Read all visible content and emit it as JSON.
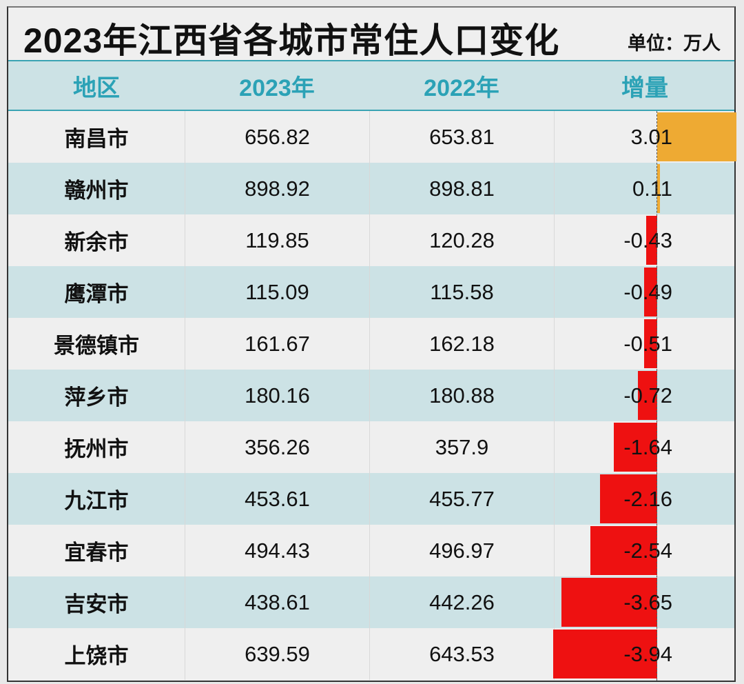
{
  "title": "2023年江西省各城市常住人口变化",
  "unit": "单位：万人",
  "columns": [
    "地区",
    "2023年",
    "2022年",
    "增量"
  ],
  "colors": {
    "positive": "#eeaa33",
    "negative": "#ee1111",
    "header_text": "#2ba2b6",
    "alt_row": "#cce2e5"
  },
  "rows": [
    {
      "region": "南昌市",
      "y2023": "656.82",
      "y2022": "653.81",
      "change": "3.01"
    },
    {
      "region": "赣州市",
      "y2023": "898.92",
      "y2022": "898.81",
      "change": "0.11"
    },
    {
      "region": "新余市",
      "y2023": "119.85",
      "y2022": "120.28",
      "change": "-0.43"
    },
    {
      "region": "鹰潭市",
      "y2023": "115.09",
      "y2022": "115.58",
      "change": "-0.49"
    },
    {
      "region": "景德镇市",
      "y2023": "161.67",
      "y2022": "162.18",
      "change": "-0.51"
    },
    {
      "region": "萍乡市",
      "y2023": "180.16",
      "y2022": "180.88",
      "change": "-0.72"
    },
    {
      "region": "抚州市",
      "y2023": "356.26",
      "y2022": "357.9",
      "change": "-1.64"
    },
    {
      "region": "九江市",
      "y2023": "453.61",
      "y2022": "455.77",
      "change": "-2.16"
    },
    {
      "region": "宜春市",
      "y2023": "494.43",
      "y2022": "496.97",
      "change": "-2.54"
    },
    {
      "region": "吉安市",
      "y2023": "438.61",
      "y2022": "442.26",
      "change": "-3.65"
    },
    {
      "region": "上饶市",
      "y2023": "639.59",
      "y2022": "643.53",
      "change": "-3.94"
    }
  ]
}
